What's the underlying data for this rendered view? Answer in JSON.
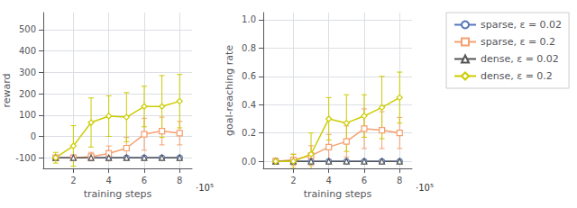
{
  "chart_data": [
    {
      "type": "line",
      "xlabel": "training steps",
      "ylabel": "reward",
      "annotation": "·10⁵",
      "x": [
        1,
        2,
        3,
        4,
        5,
        6,
        7,
        8
      ],
      "xlim": [
        0.3,
        8.7
      ],
      "xticks": [
        2,
        4,
        6,
        8
      ],
      "ylim": [
        -150,
        580
      ],
      "yticks": [
        -100,
        0,
        100,
        200,
        300,
        400,
        500
      ],
      "grid": true,
      "series": [
        {
          "name": "sparse, ε = 0.02",
          "color": "#5577bb",
          "marker": "circle",
          "values": [
            -100,
            -100,
            -100,
            -100,
            -100,
            -100,
            -100,
            -100
          ],
          "errors": [
            3,
            3,
            3,
            3,
            3,
            3,
            3,
            3
          ]
        },
        {
          "name": "sparse, ε = 0.2",
          "color": "#f5a070",
          "marker": "square",
          "values": [
            -100,
            -100,
            -95,
            -80,
            -55,
            10,
            25,
            15
          ],
          "errors": [
            8,
            12,
            20,
            35,
            50,
            75,
            65,
            55
          ]
        },
        {
          "name": "dense, ε = 0.02",
          "color": "#555555",
          "marker": "triangle",
          "values": [
            -100,
            -100,
            -100,
            -100,
            -100,
            -100,
            -100,
            -100
          ],
          "errors": [
            3,
            3,
            3,
            3,
            3,
            3,
            3,
            3
          ]
        },
        {
          "name": "dense, ε = 0.2",
          "color": "#cccc00",
          "marker": "diamond",
          "values": [
            -100,
            -45,
            65,
            95,
            90,
            140,
            140,
            165
          ],
          "errors": [
            25,
            95,
            115,
            95,
            115,
            95,
            145,
            125
          ]
        }
      ]
    },
    {
      "type": "line",
      "xlabel": "training steps",
      "ylabel": "goal-reaching rate",
      "annotation": "·10⁵",
      "x": [
        1,
        2,
        3,
        4,
        5,
        6,
        7,
        8
      ],
      "xlim": [
        0.3,
        8.7
      ],
      "xticks": [
        2,
        4,
        6,
        8
      ],
      "ylim": [
        -0.05,
        1.05
      ],
      "yticks": [
        {
          "value": 0,
          "label": "0.0"
        },
        0.2,
        0.4,
        0.6,
        0.8,
        {
          "value": 1.0,
          "label": "1.0"
        }
      ],
      "grid": true,
      "legend": "right",
      "series": [
        {
          "name": "sparse, ε = 0.02",
          "color": "#5577bb",
          "marker": "circle",
          "values": [
            0.0,
            0.0,
            0.0,
            0.0,
            0.0,
            0.0,
            0.0,
            0.0
          ],
          "errors": [
            0.005,
            0.005,
            0.005,
            0.005,
            0.005,
            0.005,
            0.005,
            0.005
          ]
        },
        {
          "name": "sparse, ε = 0.2",
          "color": "#f5a070",
          "marker": "square",
          "values": [
            0.0,
            0.01,
            0.04,
            0.1,
            0.14,
            0.23,
            0.22,
            0.2
          ],
          "errors": [
            0.02,
            0.04,
            0.07,
            0.09,
            0.11,
            0.14,
            0.13,
            0.11
          ]
        },
        {
          "name": "dense, ε = 0.02",
          "color": "#555555",
          "marker": "triangle",
          "values": [
            0.0,
            0.0,
            0.0,
            0.0,
            0.0,
            0.0,
            0.0,
            0.0
          ],
          "errors": [
            0.005,
            0.005,
            0.005,
            0.005,
            0.005,
            0.005,
            0.005,
            0.005
          ]
        },
        {
          "name": "dense, ε = 0.2",
          "color": "#cccc00",
          "marker": "diamond",
          "values": [
            0.0,
            0.0,
            0.05,
            0.3,
            0.27,
            0.32,
            0.38,
            0.45
          ],
          "errors": [
            0.02,
            0.05,
            0.15,
            0.15,
            0.2,
            0.15,
            0.22,
            0.18
          ]
        }
      ]
    }
  ]
}
